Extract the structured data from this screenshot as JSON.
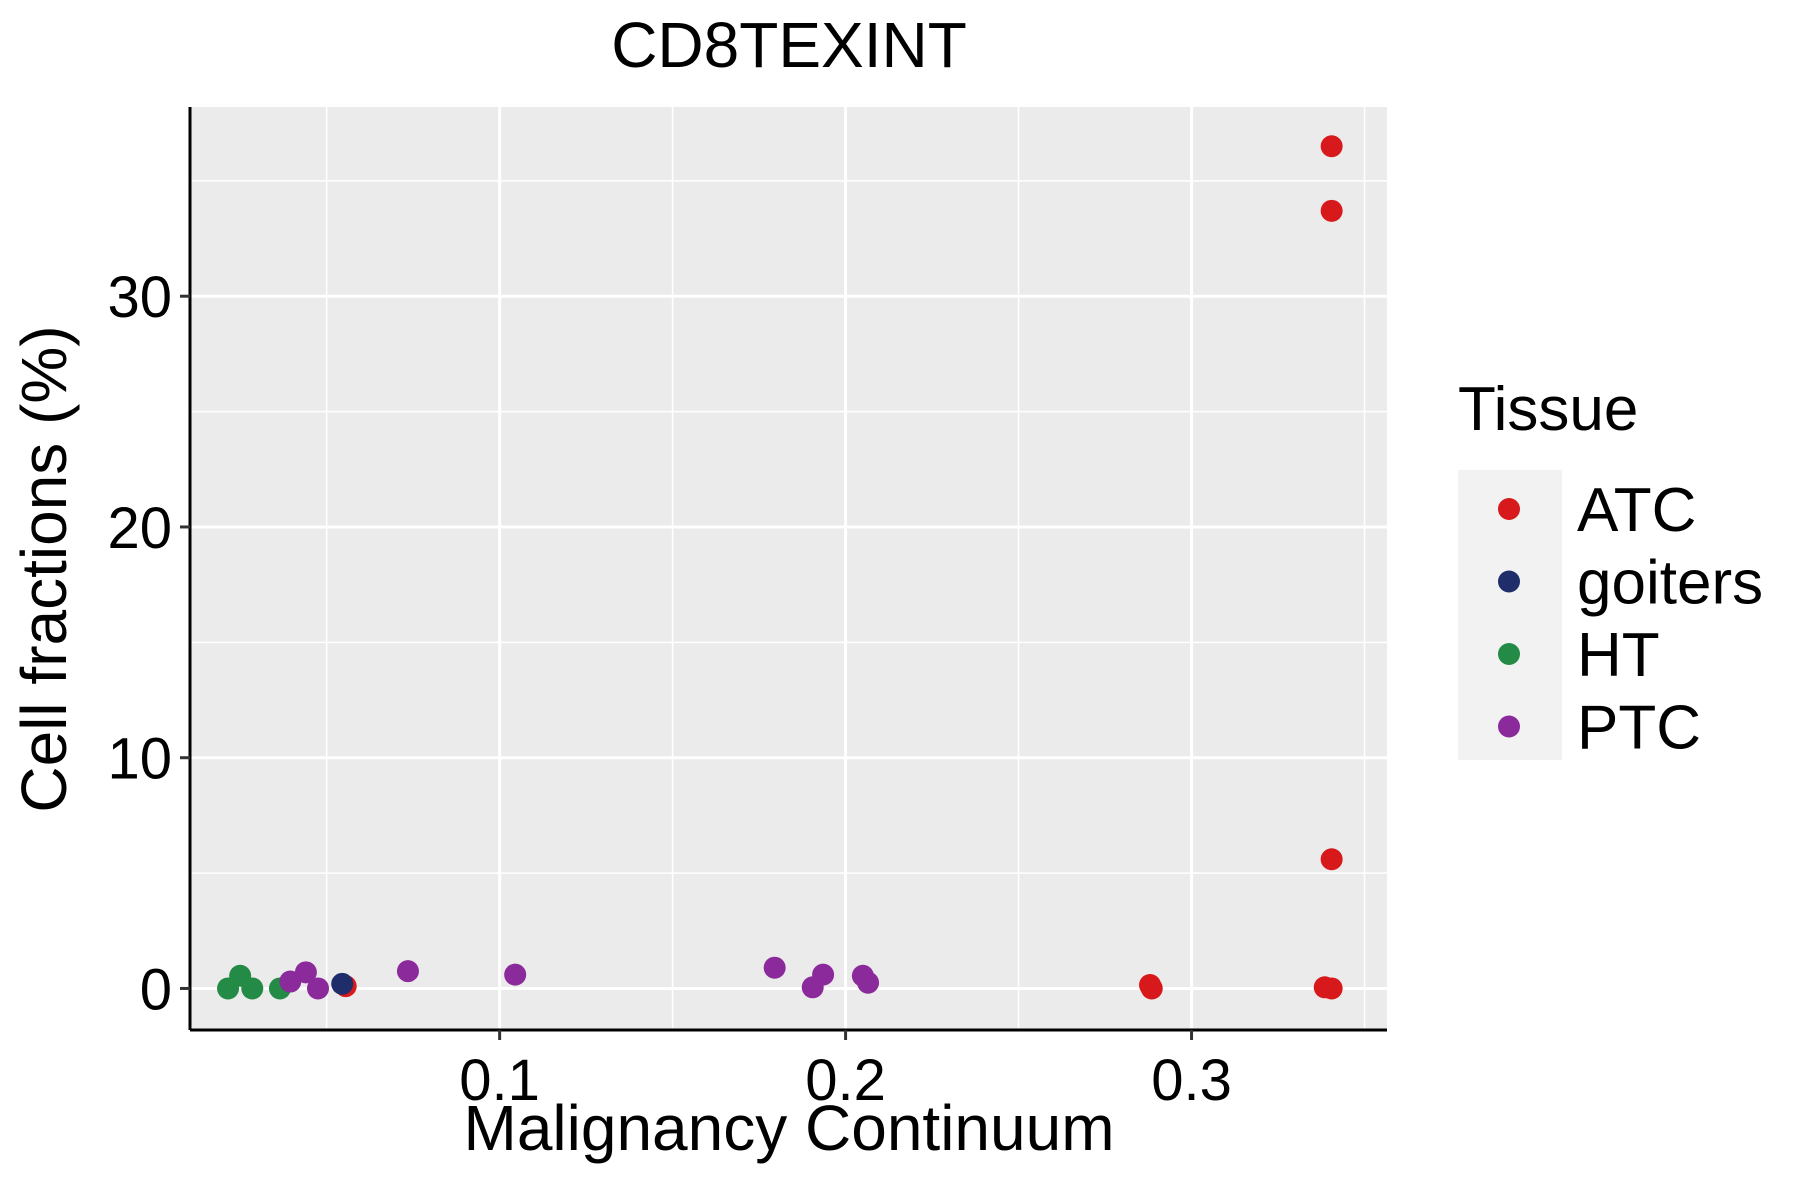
{
  "chart_data": {
    "type": "scatter",
    "title": "CD8TEXINT",
    "xlabel": "Malignancy Continuum",
    "ylabel": "Cell fractions (%)",
    "xlim": [
      0.0105,
      0.3565
    ],
    "ylim": [
      -1.8,
      38.2
    ],
    "x_ticks": [
      0.1,
      0.2,
      0.3
    ],
    "x_tick_labels": [
      "0.1",
      "0.2",
      "0.3"
    ],
    "y_ticks": [
      0,
      10,
      20,
      30
    ],
    "y_tick_labels": [
      "0",
      "10",
      "20",
      "30"
    ],
    "x_minor": [
      0.05,
      0.15,
      0.25,
      0.35
    ],
    "y_minor": [
      5,
      15,
      25,
      35
    ],
    "legend": {
      "title": "Tissue",
      "position": "right",
      "entries": [
        {
          "label": "ATC",
          "color": "#d7191c"
        },
        {
          "label": "goiters",
          "color": "#1f2e6b"
        },
        {
          "label": "HT",
          "color": "#238b45"
        },
        {
          "label": "PTC",
          "color": "#8b2a9b"
        }
      ]
    },
    "series": [
      {
        "name": "ATC",
        "color": "#d7191c",
        "points": [
          [
            0.3405,
            36.5
          ],
          [
            0.3405,
            33.7
          ],
          [
            0.3405,
            5.6
          ],
          [
            0.3385,
            0.05
          ],
          [
            0.3405,
            0.0
          ],
          [
            0.288,
            0.15
          ],
          [
            0.2885,
            0.0
          ],
          [
            0.0555,
            0.1
          ]
        ]
      },
      {
        "name": "goiters",
        "color": "#1f2e6b",
        "points": [
          [
            0.0545,
            0.2
          ]
        ]
      },
      {
        "name": "HT",
        "color": "#238b45",
        "points": [
          [
            0.0215,
            0.0
          ],
          [
            0.025,
            0.55
          ],
          [
            0.0285,
            0.0
          ],
          [
            0.0365,
            0.0
          ]
        ]
      },
      {
        "name": "PTC",
        "color": "#8b2a9b",
        "points": [
          [
            0.0395,
            0.3
          ],
          [
            0.044,
            0.7
          ],
          [
            0.0475,
            0.0
          ],
          [
            0.0735,
            0.75
          ],
          [
            0.1045,
            0.6
          ],
          [
            0.1795,
            0.9
          ],
          [
            0.1905,
            0.05
          ],
          [
            0.1935,
            0.6
          ],
          [
            0.205,
            0.55
          ],
          [
            0.2065,
            0.25
          ]
        ]
      }
    ]
  }
}
